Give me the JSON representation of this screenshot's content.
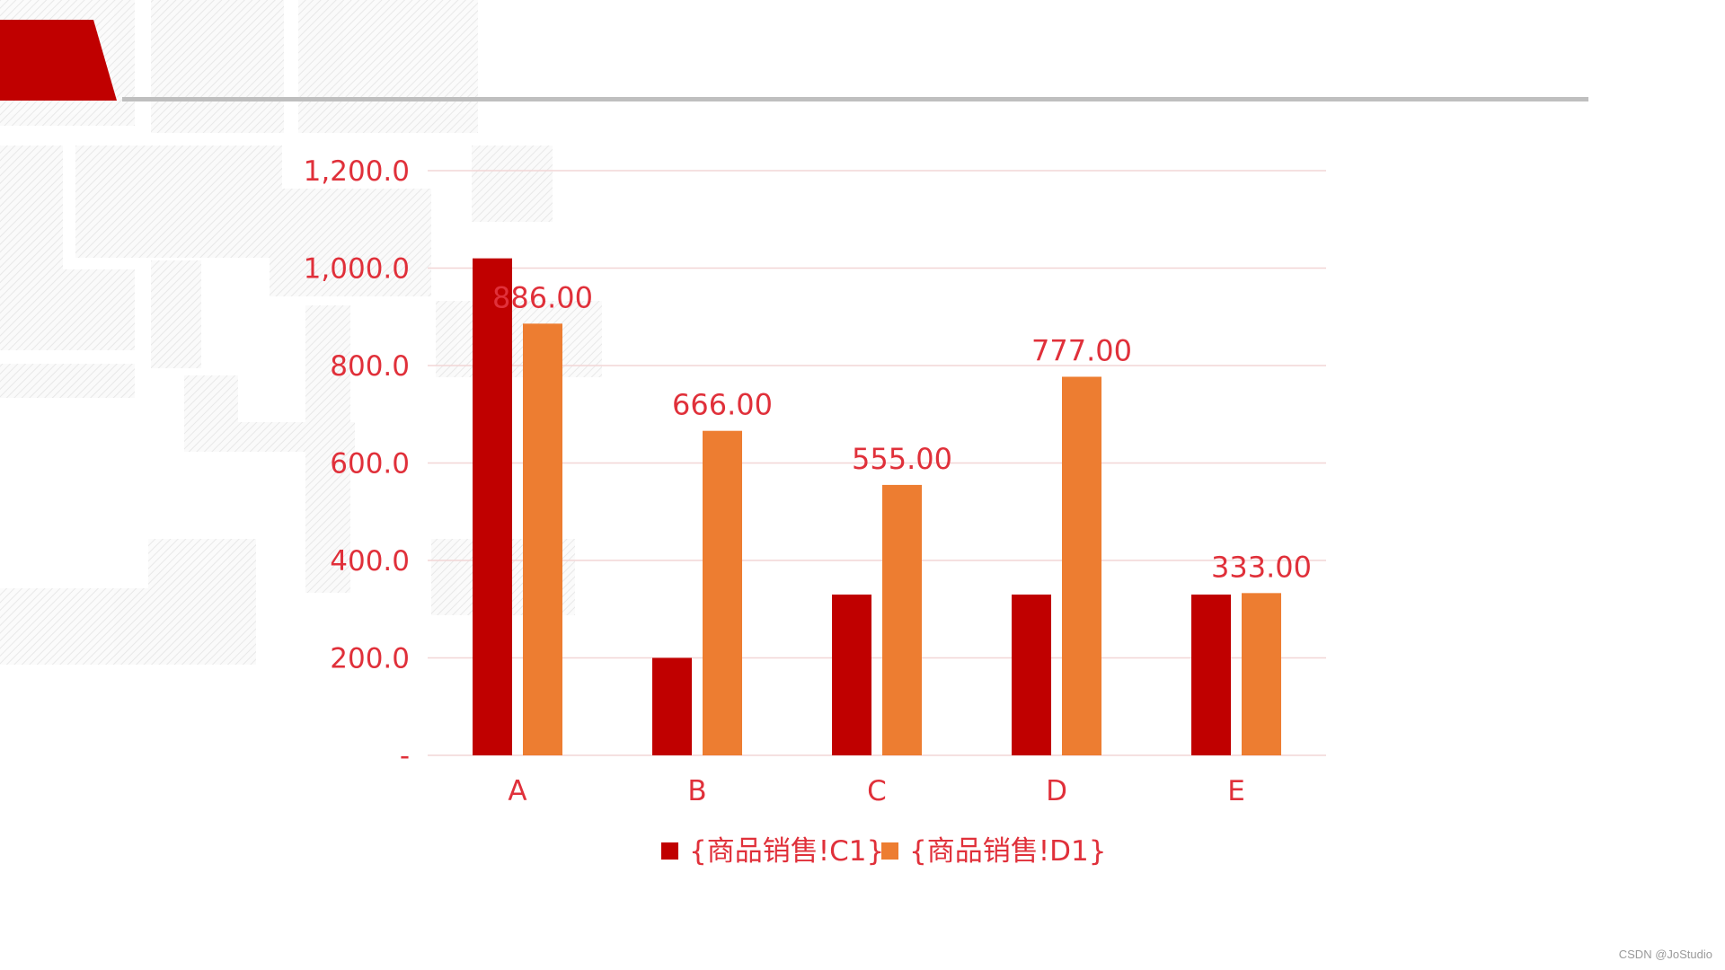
{
  "colors": {
    "series1": "#c00000",
    "series2": "#ed7d31",
    "text": "#e0303a",
    "grid": "#f2d6d6",
    "header_block": "#c00000",
    "header_rule": "#bfbfbf"
  },
  "watermark": "CSDN @JoStudio",
  "chart_data": {
    "type": "bar",
    "categories": [
      "A",
      "B",
      "C",
      "D",
      "E"
    ],
    "series": [
      {
        "name": "{商品销售!C1}",
        "values": [
          1020,
          200,
          330,
          330,
          330
        ],
        "labels": [
          "",
          "",
          "",
          "",
          ""
        ]
      },
      {
        "name": "{商品销售!D1}",
        "values": [
          886,
          666,
          555,
          777,
          333
        ],
        "labels": [
          "886.00",
          "666.00",
          "555.00",
          "777.00",
          "333.00"
        ]
      }
    ],
    "yticks": [
      {
        "value": 0,
        "label": "-"
      },
      {
        "value": 200,
        "label": "200.0"
      },
      {
        "value": 400,
        "label": "400.0"
      },
      {
        "value": 600,
        "label": "600.0"
      },
      {
        "value": 800,
        "label": "800.0"
      },
      {
        "value": 1000,
        "label": "1,000.0"
      },
      {
        "value": 1200,
        "label": "1,200.0"
      }
    ],
    "ylim": [
      0,
      1200
    ],
    "grid": true,
    "legend": "bottom"
  }
}
